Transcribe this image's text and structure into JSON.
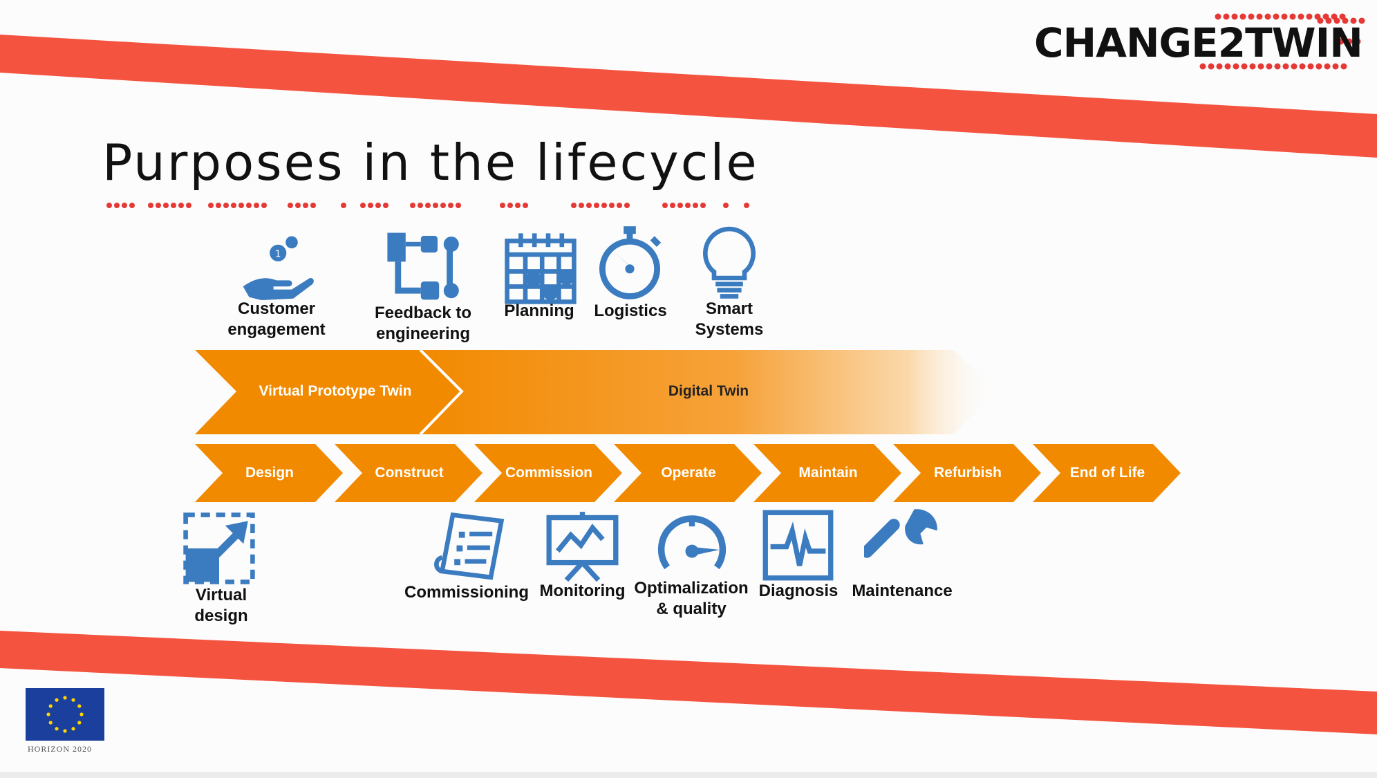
{
  "brand": {
    "logo_text": "CHANGE2TWIN",
    "logo_color": "#111111",
    "accent_red": "#f4533f",
    "dot_red": "#e53935"
  },
  "slide": {
    "title": "Purposes in the lifecycle"
  },
  "top_purposes": [
    {
      "label": "Customer\nengagement",
      "icon": "hand-coins-icon"
    },
    {
      "label": "Feedback to\nengineering",
      "icon": "flow-diagram-icon"
    },
    {
      "label": "Planning",
      "icon": "calendar-check-icon"
    },
    {
      "label": "Logistics",
      "icon": "stopwatch-icon"
    },
    {
      "label": "Smart\nSystems",
      "icon": "lightbulb-icon"
    }
  ],
  "twin_band": {
    "virtual_prototype_label": "Virtual Prototype Twin",
    "digital_twin_label": "Digital Twin",
    "color": "#f28a00"
  },
  "stages": [
    "Design",
    "Construct",
    "Commission",
    "Operate",
    "Maintain",
    "Refurbish",
    "End of Life"
  ],
  "bottom_purposes": [
    {
      "label": "Virtual\ndesign",
      "icon": "expand-arrow-icon"
    },
    {
      "label": "Commissioning",
      "icon": "document-list-icon"
    },
    {
      "label": "Monitoring",
      "icon": "presentation-chart-icon"
    },
    {
      "label": "Optimalization\n& quality",
      "icon": "speedometer-icon"
    },
    {
      "label": "Diagnosis",
      "icon": "heartbeat-monitor-icon"
    },
    {
      "label": "Maintenance",
      "icon": "wrench-icon"
    }
  ],
  "icon_color": "#3b7bbf",
  "footer": {
    "eu_caption": "HORIZON 2020"
  }
}
